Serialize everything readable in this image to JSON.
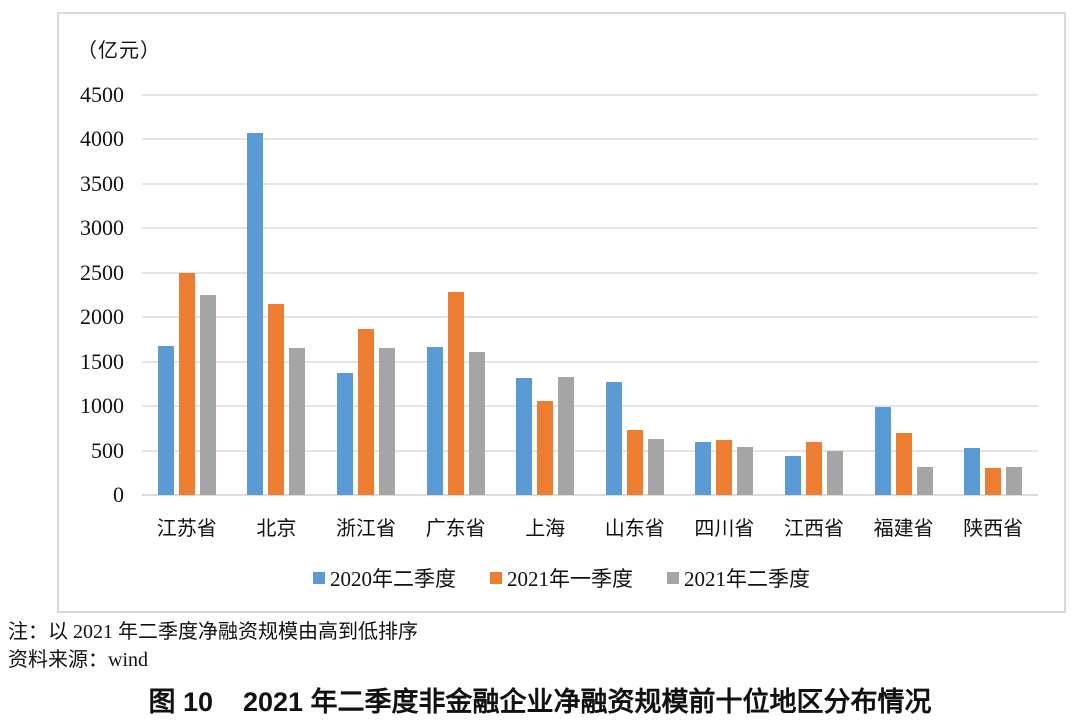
{
  "chart": {
    "unit_label": "（亿元）"
  },
  "chart_data": {
    "type": "bar",
    "title": "",
    "xlabel": "",
    "ylabel": "（亿元）",
    "categories": [
      "江苏省",
      "北京",
      "浙江省",
      "广东省",
      "上海",
      "山东省",
      "四川省",
      "江西省",
      "福建省",
      "陕西省"
    ],
    "series": [
      {
        "name": "2020年二季度",
        "color": "#5b9bd5",
        "values": [
          1680,
          4070,
          1370,
          1660,
          1320,
          1270,
          600,
          440,
          990,
          530
        ]
      },
      {
        "name": "2021年一季度",
        "color": "#ed7d31",
        "values": [
          2500,
          2150,
          1870,
          2280,
          1060,
          730,
          620,
          600,
          700,
          300
        ]
      },
      {
        "name": "2021年二季度",
        "color": "#a5a5a5",
        "values": [
          2250,
          1650,
          1650,
          1610,
          1330,
          630,
          540,
          490,
          320,
          310
        ]
      }
    ],
    "ylim": [
      0,
      4500
    ],
    "ytick_step": 500,
    "grid": true,
    "legend_position": "bottom"
  },
  "notes": {
    "note": "注：以 2021 年二季度净融资规模由高到低排序",
    "source": "资料来源：wind"
  },
  "caption": {
    "figure_label": "图 10",
    "title": "2021 年二季度非金融企业净融资规模前十位地区分布情况"
  }
}
